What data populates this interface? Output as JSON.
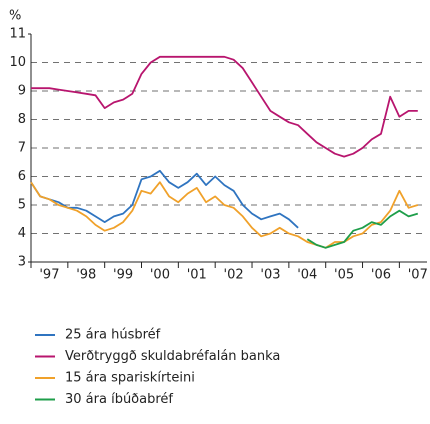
{
  "chart_data": {
    "type": "line",
    "y_label": "%",
    "x": [
      1997,
      1997.25,
      1997.5,
      1997.75,
      1998,
      1998.25,
      1998.5,
      1998.75,
      1999,
      1999.25,
      1999.5,
      1999.75,
      2000,
      2000.25,
      2000.5,
      2000.75,
      2001,
      2001.25,
      2001.5,
      2001.75,
      2002,
      2002.25,
      2002.5,
      2002.75,
      2003,
      2003.25,
      2003.5,
      2003.75,
      2004,
      2004.25,
      2004.5,
      2004.75,
      2005,
      2005.25,
      2005.5,
      2005.75,
      2006,
      2006.25,
      2006.5,
      2006.75,
      2007,
      2007.25,
      2007.5
    ],
    "series": [
      {
        "name": "25 ára húsbréf",
        "color": "#2f74c0",
        "values": [
          5.8,
          5.3,
          5.2,
          5.1,
          4.9,
          4.9,
          4.8,
          4.6,
          4.4,
          4.6,
          4.7,
          5.0,
          5.9,
          6.0,
          6.2,
          5.8,
          5.6,
          5.8,
          6.1,
          5.7,
          6.0,
          5.7,
          5.5,
          5.0,
          4.7,
          4.5,
          4.6,
          4.7,
          4.5,
          4.2,
          null,
          null,
          null,
          null,
          null,
          null,
          null,
          null,
          null,
          null,
          null,
          null,
          null
        ]
      },
      {
        "name": "Verðtryggð skuldabréfalán banka",
        "color": "#b8156e",
        "values": [
          9.1,
          9.1,
          9.1,
          9.05,
          9.0,
          8.95,
          8.9,
          8.85,
          8.4,
          8.6,
          8.7,
          8.9,
          9.6,
          10.0,
          10.2,
          10.2,
          10.2,
          10.2,
          10.2,
          10.2,
          10.2,
          10.2,
          10.1,
          9.8,
          9.3,
          8.8,
          8.3,
          8.1,
          7.9,
          7.8,
          7.5,
          7.2,
          7.0,
          6.8,
          6.7,
          6.8,
          7.0,
          7.3,
          7.5,
          8.8,
          8.1,
          8.3,
          8.3
        ]
      },
      {
        "name": "15 ára spariskírteini",
        "color": "#f0a12a",
        "values": [
          5.8,
          5.3,
          5.2,
          5.0,
          4.9,
          4.8,
          4.6,
          4.3,
          4.1,
          4.2,
          4.4,
          4.8,
          5.5,
          5.4,
          5.8,
          5.3,
          5.1,
          5.4,
          5.6,
          5.1,
          5.3,
          5.0,
          4.9,
          4.6,
          4.2,
          3.9,
          4.0,
          4.2,
          4.0,
          3.9,
          3.7,
          3.6,
          3.5,
          3.7,
          3.7,
          3.9,
          4.0,
          4.3,
          4.4,
          4.8,
          5.5,
          4.9,
          5.0
        ]
      },
      {
        "name": "30 ára íbúðabréf",
        "color": "#1e9e4a",
        "values": [
          null,
          null,
          null,
          null,
          null,
          null,
          null,
          null,
          null,
          null,
          null,
          null,
          null,
          null,
          null,
          null,
          null,
          null,
          null,
          null,
          null,
          null,
          null,
          null,
          null,
          null,
          null,
          null,
          null,
          null,
          3.8,
          3.6,
          3.5,
          3.6,
          3.7,
          4.1,
          4.2,
          4.4,
          4.3,
          4.6,
          4.8,
          4.6,
          4.7
        ]
      }
    ],
    "xlim": [
      1997,
      2007.75
    ],
    "xticks": [
      {
        "value": 1997,
        "label": "'97"
      },
      {
        "value": 1998,
        "label": "'98"
      },
      {
        "value": 1999,
        "label": "'99"
      },
      {
        "value": 2000,
        "label": "'00"
      },
      {
        "value": 2001,
        "label": "'01"
      },
      {
        "value": 2002,
        "label": "'02"
      },
      {
        "value": 2003,
        "label": "'03"
      },
      {
        "value": 2004,
        "label": "'04"
      },
      {
        "value": 2005,
        "label": "'05"
      },
      {
        "value": 2006,
        "label": "'06"
      },
      {
        "value": 2007,
        "label": "'07"
      }
    ],
    "ylim": [
      3,
      11
    ],
    "yticks": [
      3,
      4,
      5,
      6,
      7,
      8,
      9,
      10,
      11
    ],
    "grid": true
  }
}
